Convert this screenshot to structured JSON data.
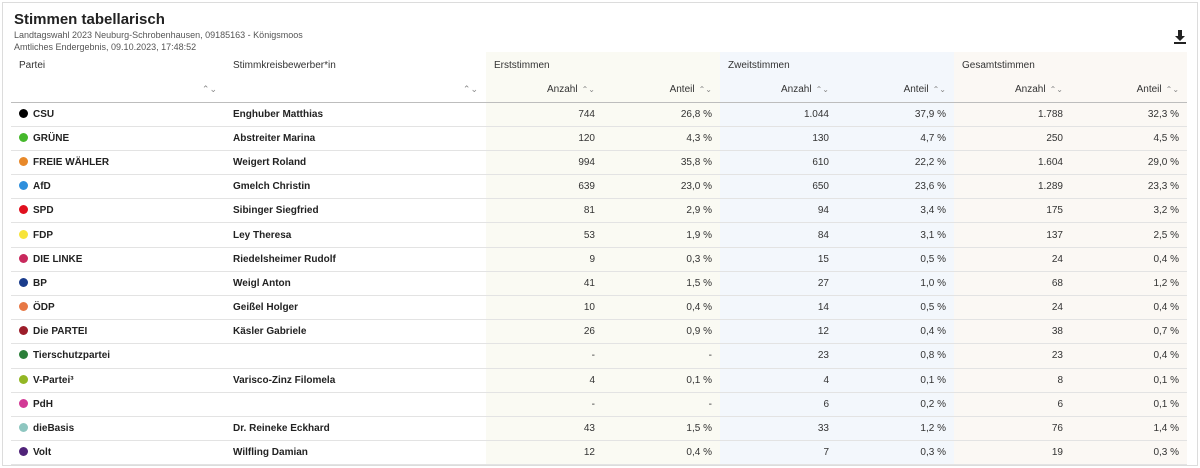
{
  "header": {
    "title": "Stimmen tabellarisch",
    "subtitle1": "Landtagswahl 2023 Neuburg-Schrobenhausen, 09185163 - Königsmoos",
    "subtitle2": "Amtliches Endergebnis, 09.10.2023, 17:48:52",
    "download_icon": "download-icon"
  },
  "columns": {
    "partei": "Partei",
    "kandidat": "Stimmkreisbewerber*in",
    "erststimmen": "Erststimmen",
    "zweitstimmen": "Zweitstimmen",
    "gesamtstimmen": "Gesamtstimmen",
    "anzahl": "Anzahl",
    "anteil": "Anteil",
    "sort_glyph": "⌃⌄"
  },
  "rows": [
    {
      "party": "CSU",
      "color": "#000000",
      "candidate": "Enghuber Matthias",
      "e_anz": "744",
      "e_ant": "26,8 %",
      "z_anz": "1.044",
      "z_ant": "37,9 %",
      "g_anz": "1.788",
      "g_ant": "32,3 %"
    },
    {
      "party": "GRÜNE",
      "color": "#46b82c",
      "candidate": "Abstreiter Marina",
      "e_anz": "120",
      "e_ant": "4,3 %",
      "z_anz": "130",
      "z_ant": "4,7 %",
      "g_anz": "250",
      "g_ant": "4,5 %"
    },
    {
      "party": "FREIE WÄHLER",
      "color": "#e8892a",
      "candidate": "Weigert Roland",
      "e_anz": "994",
      "e_ant": "35,8 %",
      "z_anz": "610",
      "z_ant": "22,2 %",
      "g_anz": "1.604",
      "g_ant": "29,0 %"
    },
    {
      "party": "AfD",
      "color": "#2f8fdc",
      "candidate": "Gmelch Christin",
      "e_anz": "639",
      "e_ant": "23,0 %",
      "z_anz": "650",
      "z_ant": "23,6 %",
      "g_anz": "1.289",
      "g_ant": "23,3 %"
    },
    {
      "party": "SPD",
      "color": "#e0101e",
      "candidate": "Sibinger Siegfried",
      "e_anz": "81",
      "e_ant": "2,9 %",
      "z_anz": "94",
      "z_ant": "3,4 %",
      "g_anz": "175",
      "g_ant": "3,2 %"
    },
    {
      "party": "FDP",
      "color": "#f7e43a",
      "candidate": "Ley Theresa",
      "e_anz": "53",
      "e_ant": "1,9 %",
      "z_anz": "84",
      "z_ant": "3,1 %",
      "g_anz": "137",
      "g_ant": "2,5 %"
    },
    {
      "party": "DIE LINKE",
      "color": "#c8295d",
      "candidate": "Riedelsheimer Rudolf",
      "e_anz": "9",
      "e_ant": "0,3 %",
      "z_anz": "15",
      "z_ant": "0,5 %",
      "g_anz": "24",
      "g_ant": "0,4 %"
    },
    {
      "party": "BP",
      "color": "#1a3c8c",
      "candidate": "Weigl Anton",
      "e_anz": "41",
      "e_ant": "1,5 %",
      "z_anz": "27",
      "z_ant": "1,0 %",
      "g_anz": "68",
      "g_ant": "1,2 %"
    },
    {
      "party": "ÖDP",
      "color": "#e77845",
      "candidate": "Geißel Holger",
      "e_anz": "10",
      "e_ant": "0,4 %",
      "z_anz": "14",
      "z_ant": "0,5 %",
      "g_anz": "24",
      "g_ant": "0,4 %"
    },
    {
      "party": "Die PARTEI",
      "color": "#9c1d2a",
      "candidate": "Käsler Gabriele",
      "e_anz": "26",
      "e_ant": "0,9 %",
      "z_anz": "12",
      "z_ant": "0,4 %",
      "g_anz": "38",
      "g_ant": "0,7 %"
    },
    {
      "party": "Tierschutzpartei",
      "color": "#2c7f3a",
      "candidate": "",
      "e_anz": "-",
      "e_ant": "-",
      "z_anz": "23",
      "z_ant": "0,8 %",
      "g_anz": "23",
      "g_ant": "0,4 %"
    },
    {
      "party": "V-Partei³",
      "color": "#93b724",
      "candidate": "Varisco-Zinz Filomela",
      "e_anz": "4",
      "e_ant": "0,1 %",
      "z_anz": "4",
      "z_ant": "0,1 %",
      "g_anz": "8",
      "g_ant": "0,1 %"
    },
    {
      "party": "PdH",
      "color": "#d23a96",
      "candidate": "",
      "e_anz": "-",
      "e_ant": "-",
      "z_anz": "6",
      "z_ant": "0,2 %",
      "g_anz": "6",
      "g_ant": "0,1 %"
    },
    {
      "party": "dieBasis",
      "color": "#8ec6c0",
      "candidate": "Dr. Reineke Eckhard",
      "e_anz": "43",
      "e_ant": "1,5 %",
      "z_anz": "33",
      "z_ant": "1,2 %",
      "g_anz": "76",
      "g_ant": "1,4 %"
    },
    {
      "party": "Volt",
      "color": "#502379",
      "candidate": "Wilfling Damian",
      "e_anz": "12",
      "e_ant": "0,4 %",
      "z_anz": "7",
      "z_ant": "0,3 %",
      "g_anz": "19",
      "g_ant": "0,3 %"
    }
  ]
}
